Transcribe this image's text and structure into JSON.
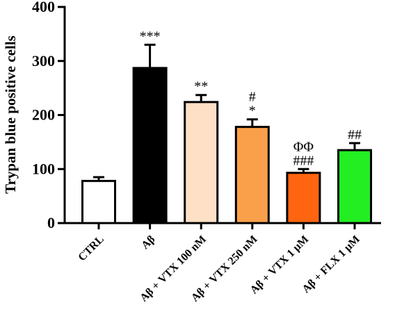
{
  "chart_data": {
    "type": "bar",
    "ylabel": "Trypan blue positive cells",
    "xlabel": "",
    "ylim": [
      0,
      400
    ],
    "yticks": [
      "0",
      "100",
      "200",
      "300",
      "400"
    ],
    "categories": [
      "CTRL",
      "Aβ",
      "Aβ + VTX 100 nM",
      "Aβ + VTX 250 nM",
      "Aβ + VTX 1 μM",
      "Aβ + FLX 1 μM"
    ],
    "values": [
      78,
      287,
      224,
      178,
      93,
      135
    ],
    "errors": [
      7,
      43,
      13,
      14,
      7,
      13
    ],
    "colors": [
      "#ffffff",
      "#000000",
      "#fde0c5",
      "#fba04a",
      "#ff6510",
      "#22ee22"
    ],
    "annotations": [
      [],
      [
        "***"
      ],
      [
        "**"
      ],
      [
        "#",
        "*"
      ],
      [
        "ΦΦ",
        "###"
      ],
      [
        "##"
      ]
    ]
  }
}
